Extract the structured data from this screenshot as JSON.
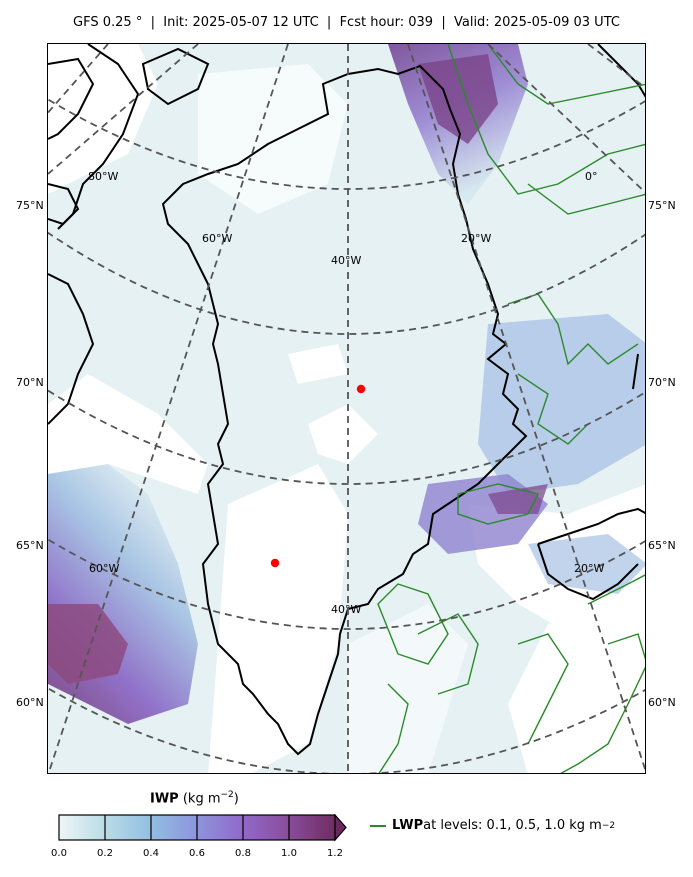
{
  "header": {
    "title": "GFS 0.25$^\\circ$  |  Init: 2025-05-07 12 UTC  |  Fcst hour: 039  |  Valid: 2025-05-09 03 UTC",
    "title_display": "GFS 0.25 °  |  Init: 2025-05-07 12 UTC  |  Fcst hour: 039  |  Valid: 2025-05-09 03 UTC"
  },
  "map": {
    "lat_labels_left": [
      "75°N",
      "70°N",
      "65°N",
      "60°N"
    ],
    "lat_labels_right": [
      "75°N",
      "70°N",
      "65°N",
      "60°N"
    ],
    "lon_labels": [
      "80°W",
      "60°W",
      "40°W",
      "20°W",
      "0°",
      "60°W",
      "40°W",
      "20°W"
    ],
    "markers": [
      {
        "name": "marker-north",
        "color": "#ff0000"
      },
      {
        "name": "marker-south",
        "color": "#ff0000"
      }
    ],
    "colors": {
      "coastline": "#000000",
      "gridline": "#555555",
      "lwp_contour": "#2a8a2a"
    }
  },
  "legend": {
    "iwp_var": "IWP",
    "iwp_units": "(kg m",
    "iwp_exp": "−2",
    "iwp_close": ")",
    "colorbar_ticks": [
      "0.0",
      "0.2",
      "0.4",
      "0.6",
      "0.8",
      "1.0",
      "1.2"
    ],
    "colorbar_colors": [
      "#e6f2f3",
      "#b3d8e6",
      "#8fb6e0",
      "#8c8fdb",
      "#8d65c3",
      "#874b9a",
      "#6e2e61"
    ],
    "lwp_var": "LWP",
    "lwp_text": " at levels: 0.1, 0.5, 1.0  kg m",
    "lwp_exp": "−2"
  }
}
